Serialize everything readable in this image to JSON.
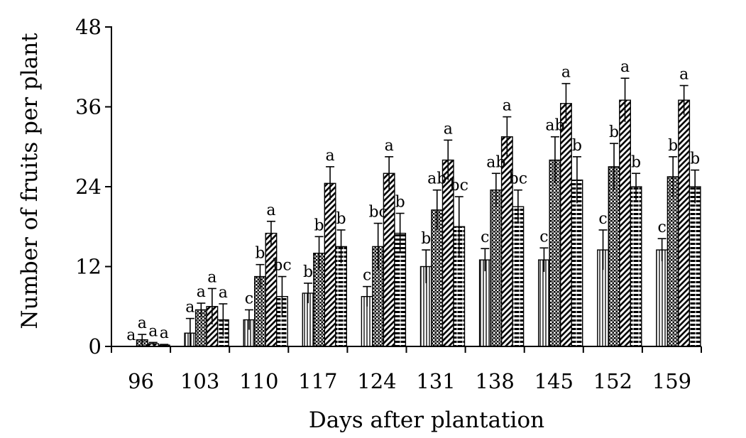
{
  "chart_data": {
    "type": "bar",
    "title": "",
    "xlabel": "Days after plantation",
    "ylabel": "Number of fruits per plant",
    "ylim": [
      0,
      48
    ],
    "yticks": [
      0,
      12,
      24,
      36,
      48
    ],
    "grid": false,
    "legend": "none",
    "categories": [
      "96",
      "103",
      "110",
      "117",
      "124",
      "131",
      "138",
      "145",
      "152",
      "159"
    ],
    "series": [
      {
        "pattern": "vertical-lines",
        "values": [
          0,
          2,
          4,
          8,
          7.5,
          12,
          13,
          13,
          14.5,
          14.5
        ],
        "errors": [
          0,
          2.2,
          1.5,
          1.5,
          1.5,
          2.5,
          1.7,
          1.8,
          3,
          1.7
        ],
        "letters": [
          "a",
          "a",
          "c",
          "b",
          "c",
          "b",
          "c",
          "c",
          "c",
          "c"
        ]
      },
      {
        "pattern": "checkered",
        "values": [
          1,
          5.5,
          10.5,
          14,
          15,
          20.5,
          23.5,
          28,
          27,
          25.5
        ],
        "errors": [
          0.8,
          1,
          1.8,
          2.5,
          3.5,
          3,
          2.5,
          3.5,
          3.5,
          3
        ],
        "letters": [
          "a",
          "a",
          "b",
          "b",
          "bc",
          "ab",
          "ab",
          "ab",
          "b",
          "b"
        ]
      },
      {
        "pattern": "diagonal-dashes",
        "values": [
          0.4,
          6,
          17,
          24.5,
          26,
          28,
          31.5,
          36.5,
          37,
          37
        ],
        "errors": [
          0.2,
          2.7,
          1.8,
          2.5,
          2.5,
          3,
          3,
          3,
          3.3,
          2.2
        ],
        "letters": [
          "a",
          "a",
          "a",
          "a",
          "a",
          "a",
          "a",
          "a",
          "a",
          "a"
        ]
      },
      {
        "pattern": "horizontal-bricks",
        "values": [
          0.2,
          4,
          7.5,
          15,
          17,
          18,
          21,
          25,
          24,
          24
        ],
        "errors": [
          0.1,
          2.4,
          3,
          2.5,
          3,
          4.5,
          2.5,
          3.5,
          2,
          2.5
        ],
        "letters": [
          "a",
          "a",
          "bc",
          "b",
          "b",
          "bc",
          "bc",
          "b",
          "b",
          "b"
        ]
      }
    ]
  }
}
